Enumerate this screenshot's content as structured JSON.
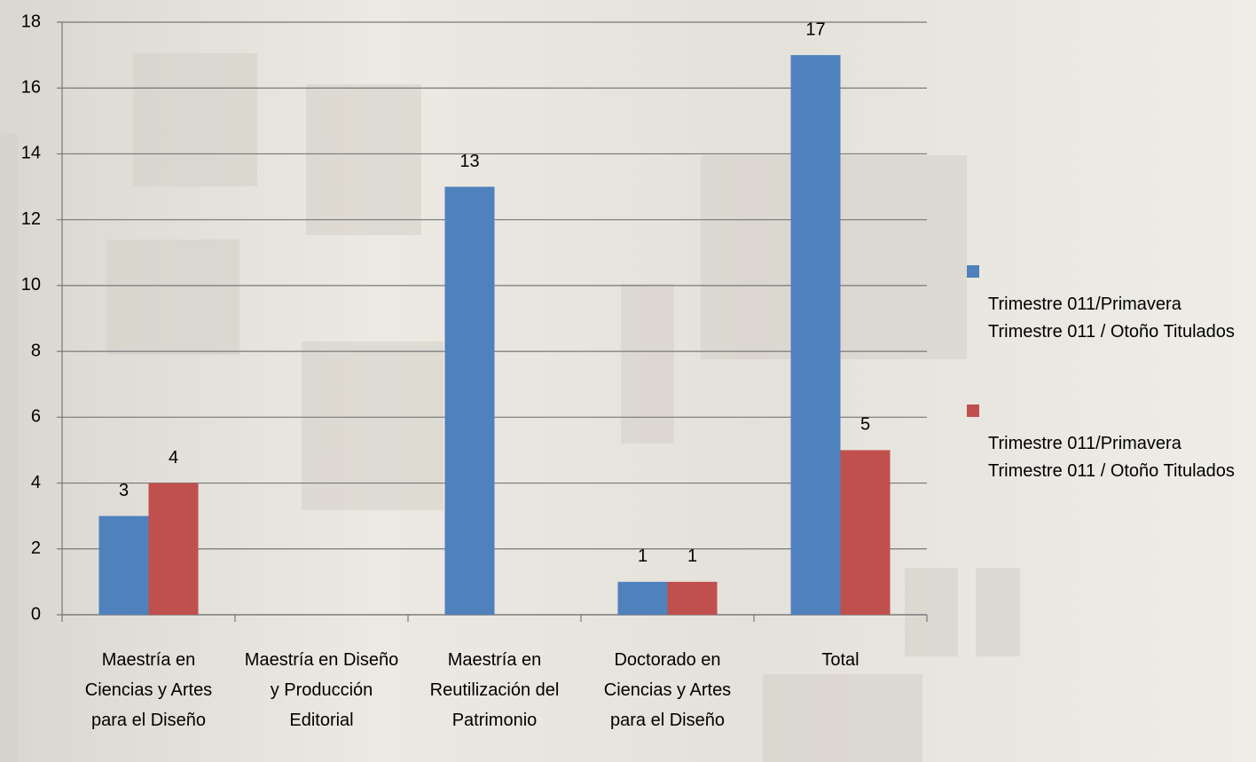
{
  "chart_data": {
    "type": "bar",
    "categories": [
      "Maestría en Ciencias y Artes para el Diseño",
      "Maestría en Diseño y Producción Editorial",
      "Maestría en Reutilización del Patrimonio",
      "Doctorado en Ciencias y Artes para el Diseño",
      "Total"
    ],
    "series": [
      {
        "name": "Trimestre 011/Primavera Trimestre 011 / Otoño Titulados",
        "color": "#4f81bd",
        "values": [
          3,
          null,
          13,
          1,
          17
        ]
      },
      {
        "name": "Trimestre 011/Primavera Trimestre 011 / Otoño Titulados",
        "color": "#c0504d",
        "values": [
          4,
          null,
          null,
          1,
          5
        ]
      }
    ],
    "ylim": [
      0,
      18
    ],
    "yticks": [
      0,
      2,
      4,
      6,
      8,
      10,
      12,
      14,
      16,
      18
    ],
    "grid": true,
    "legend": "right"
  }
}
